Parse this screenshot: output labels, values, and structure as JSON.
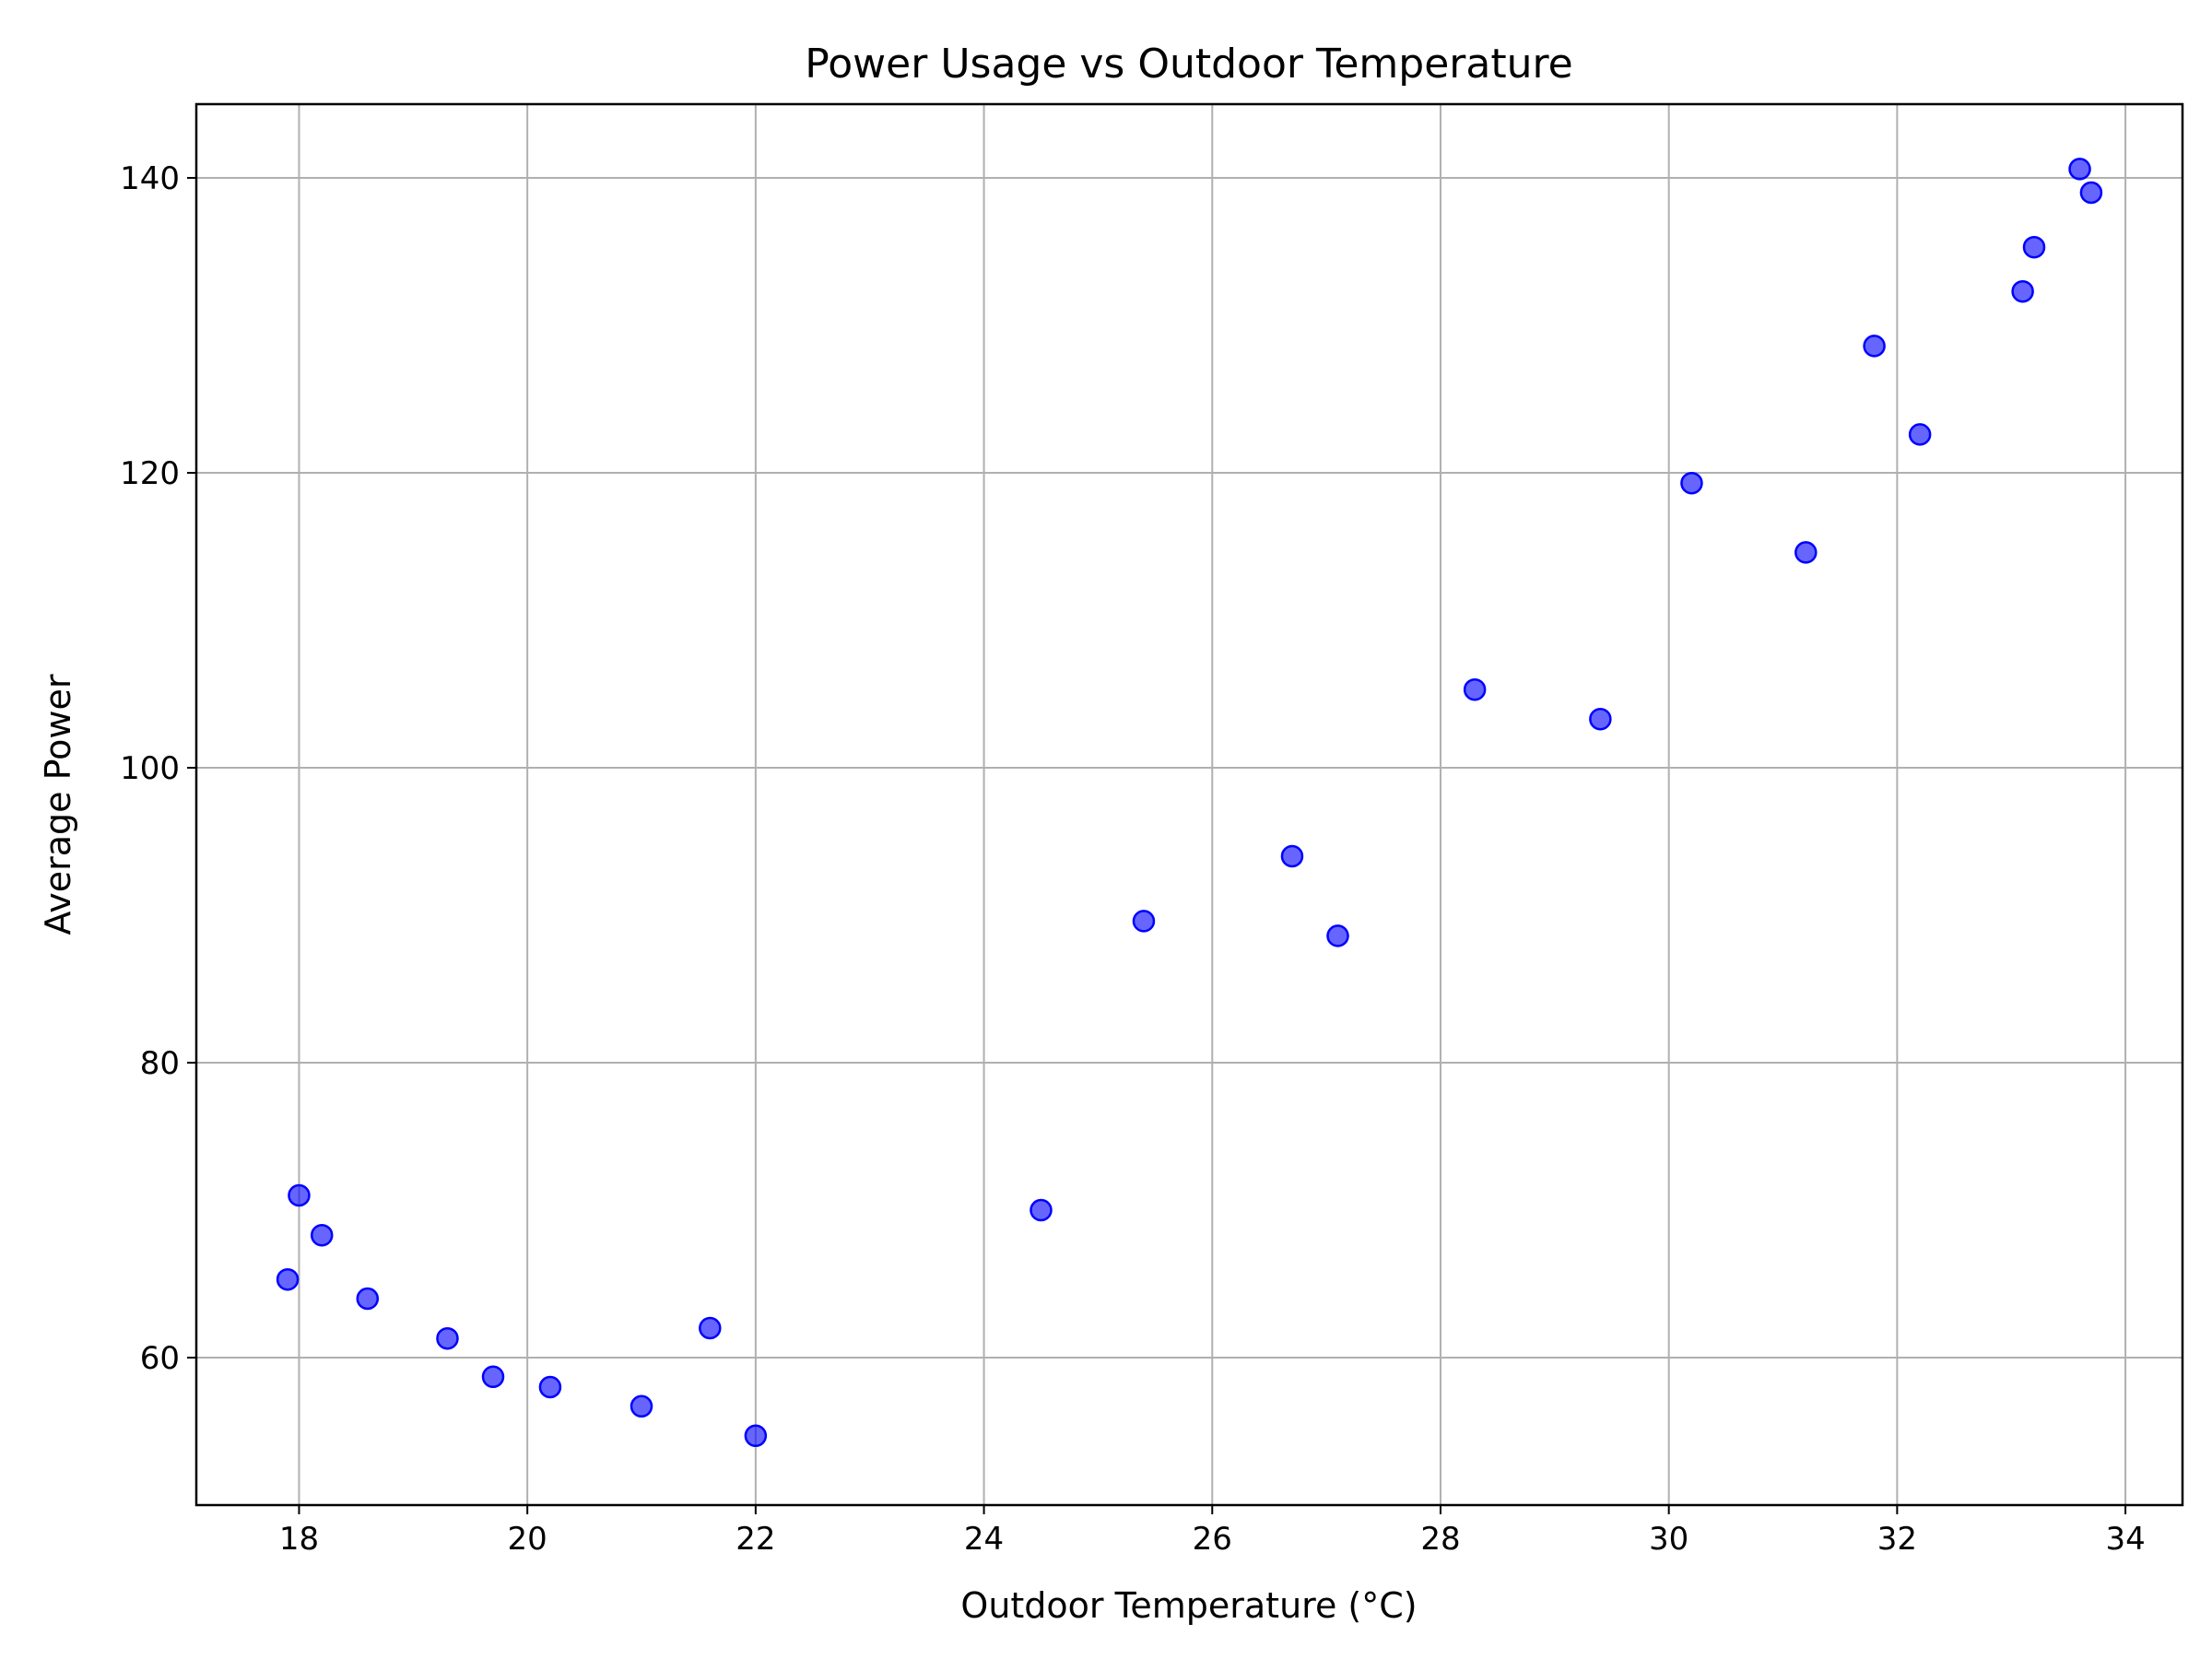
{
  "chart_data": {
    "type": "scatter",
    "title": "Power Usage vs Outdoor Temperature",
    "xlabel": "Outdoor Temperature (°C)",
    "ylabel": "Average Power",
    "xlim": [
      17.1,
      34.5
    ],
    "ylim": [
      50.0,
      145.0
    ],
    "xticks": [
      18,
      20,
      22,
      24,
      26,
      28,
      30,
      32,
      34
    ],
    "yticks": [
      60,
      80,
      100,
      120,
      140
    ],
    "grid": true,
    "marker_color": "#0000ff",
    "marker_edge_color": "#0000ff",
    "marker_opacity": 0.6,
    "points": [
      {
        "x": 17.9,
        "y": 65.3
      },
      {
        "x": 18.0,
        "y": 71.0
      },
      {
        "x": 18.2,
        "y": 68.3
      },
      {
        "x": 18.6,
        "y": 64.0
      },
      {
        "x": 19.3,
        "y": 61.3
      },
      {
        "x": 19.7,
        "y": 58.7
      },
      {
        "x": 20.2,
        "y": 58.0
      },
      {
        "x": 21.0,
        "y": 56.7
      },
      {
        "x": 21.6,
        "y": 62.0
      },
      {
        "x": 22.0,
        "y": 54.7
      },
      {
        "x": 24.5,
        "y": 70.0
      },
      {
        "x": 25.4,
        "y": 89.6
      },
      {
        "x": 26.7,
        "y": 94.0
      },
      {
        "x": 27.1,
        "y": 88.6
      },
      {
        "x": 28.3,
        "y": 105.3
      },
      {
        "x": 29.4,
        "y": 103.3
      },
      {
        "x": 30.2,
        "y": 119.3
      },
      {
        "x": 31.2,
        "y": 114.6
      },
      {
        "x": 31.8,
        "y": 128.6
      },
      {
        "x": 32.2,
        "y": 122.6
      },
      {
        "x": 33.1,
        "y": 132.3
      },
      {
        "x": 33.2,
        "y": 135.3
      },
      {
        "x": 33.6,
        "y": 140.6
      },
      {
        "x": 33.7,
        "y": 139.0
      }
    ]
  }
}
